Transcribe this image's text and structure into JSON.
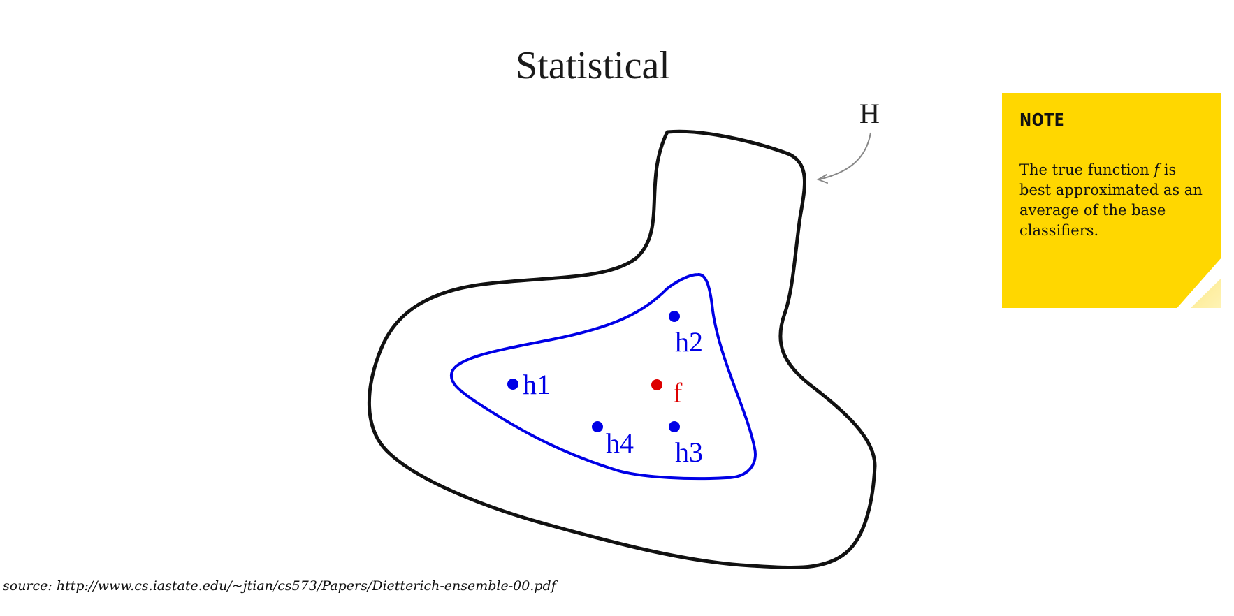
{
  "diagram": {
    "title": "Statistical",
    "hypothesis_space_label": "H",
    "points": [
      {
        "id": "h1",
        "label": "h1",
        "color": "#0000e6"
      },
      {
        "id": "h2",
        "label": "h2",
        "color": "#0000e6"
      },
      {
        "id": "h3",
        "label": "h3",
        "color": "#0000e6"
      },
      {
        "id": "h4",
        "label": "h4",
        "color": "#0000e6"
      },
      {
        "id": "f",
        "label": "f",
        "color": "#dd0000"
      }
    ],
    "colors": {
      "outer_boundary": "#111111",
      "inner_boundary": "#0000e6",
      "arrow": "#888888"
    }
  },
  "source": "source: http://www.cs.iastate.edu/~jtian/cs573/Papers/Dietterich-ensemble-00.pdf",
  "note": {
    "heading": "NOTE",
    "body_before": "The true function ",
    "body_function": "f",
    "body_after": " is best approximated as an average of the base classifiers.",
    "background_color": "#ffd700"
  }
}
